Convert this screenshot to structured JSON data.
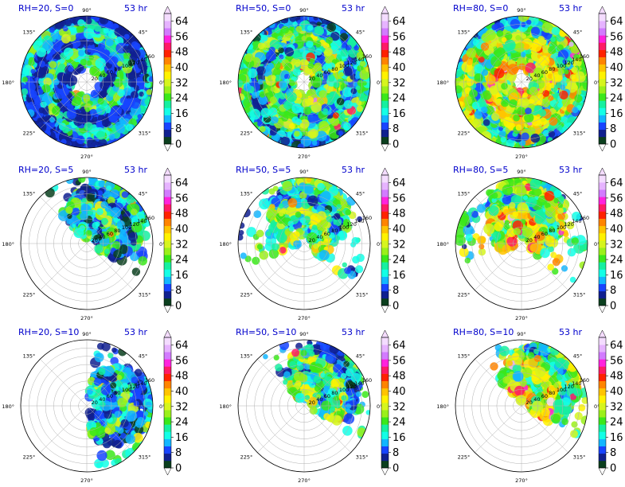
{
  "figure": {
    "colorbar": {
      "levels": [
        0,
        4,
        8,
        12,
        16,
        20,
        24,
        28,
        32,
        36,
        40,
        44,
        48,
        52,
        56,
        60,
        64,
        68
      ],
      "tick_labels": [
        "0",
        "8",
        "16",
        "24",
        "32",
        "40",
        "48",
        "56",
        "64"
      ],
      "colors": [
        "#0b3f1e",
        "#10208f",
        "#1844ff",
        "#13b6ff",
        "#14ffe6",
        "#16f0a0",
        "#3be81a",
        "#9bf01a",
        "#d6f51e",
        "#fff200",
        "#ffc400",
        "#ff8400",
        "#ff2200",
        "#ff1a66",
        "#ff22dd",
        "#d27bff",
        "#e6b3ff",
        "#f4dcff"
      ],
      "extend": "both"
    },
    "polar_axes": {
      "angle_labels": [
        "0°",
        "45°",
        "90°",
        "135°",
        "180°",
        "225°",
        "270°",
        "315°"
      ],
      "radius_labels": [
        "20",
        "40",
        "60",
        "80",
        "100",
        "120",
        "140",
        "160"
      ]
    }
  },
  "chart_data": [
    {
      "type": "heatmap",
      "title_left": "RH=20, S=0",
      "title_right": "53 hr",
      "rh": 20,
      "s": 0,
      "coverage": "full"
    },
    {
      "type": "heatmap",
      "title_left": "RH=50, S=0",
      "title_right": "53 hr",
      "rh": 50,
      "s": 0,
      "coverage": "full"
    },
    {
      "type": "heatmap",
      "title_left": "RH=80, S=0",
      "title_right": "53 hr",
      "rh": 80,
      "s": 0,
      "coverage": "full"
    },
    {
      "type": "heatmap",
      "title_left": "RH=20, S=5",
      "title_right": "53 hr",
      "rh": 20,
      "s": 5,
      "coverage": "upper-right"
    },
    {
      "type": "heatmap",
      "title_left": "RH=50, S=5",
      "title_right": "53 hr",
      "rh": 50,
      "s": 5,
      "coverage": "upper"
    },
    {
      "type": "heatmap",
      "title_left": "RH=80, S=5",
      "title_right": "53 hr",
      "rh": 80,
      "s": 5,
      "coverage": "upper"
    },
    {
      "type": "heatmap",
      "title_left": "RH=20, S=10",
      "title_right": "53 hr",
      "rh": 20,
      "s": 10,
      "coverage": "right"
    },
    {
      "type": "heatmap",
      "title_left": "RH=50, S=10",
      "title_right": "53 hr",
      "rh": 50,
      "s": 10,
      "coverage": "upper-right"
    },
    {
      "type": "heatmap",
      "title_left": "RH=80, S=10",
      "title_right": "53 hr",
      "rh": 80,
      "s": 10,
      "coverage": "upper-right"
    }
  ]
}
